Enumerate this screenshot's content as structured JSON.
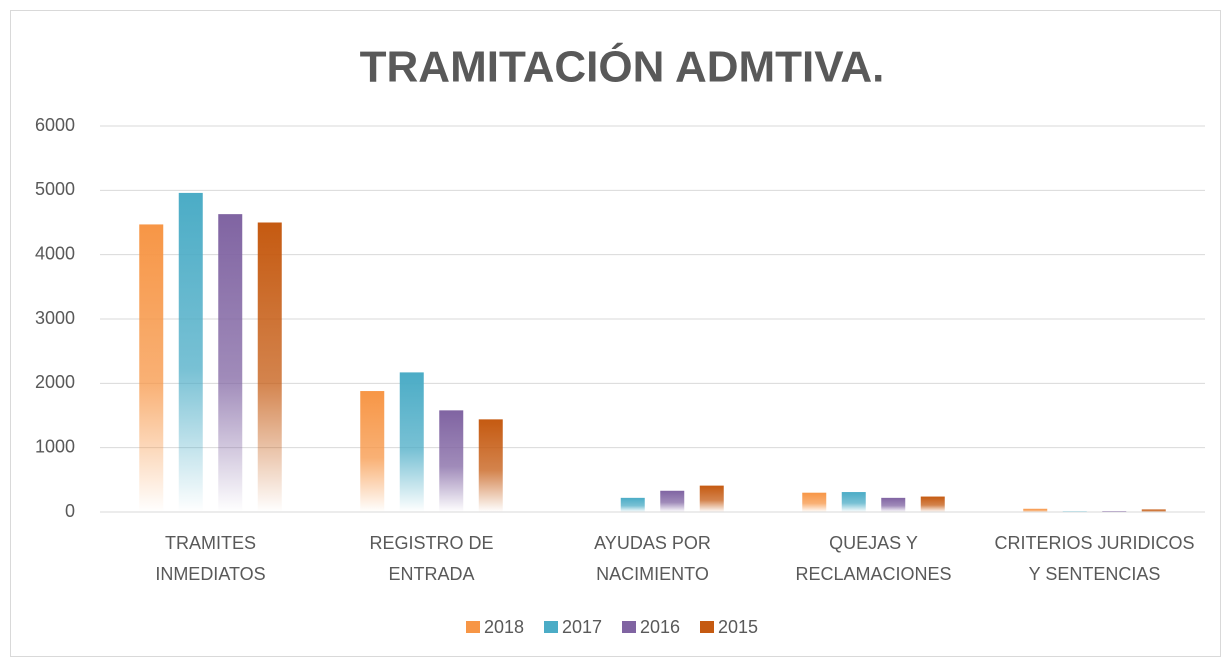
{
  "chart_data": {
    "type": "bar",
    "title": "TRAMITACIÓN ADMTIVA.",
    "categories": [
      [
        "TRAMITES",
        "INMEDIATOS"
      ],
      [
        "REGISTRO DE",
        "ENTRADA"
      ],
      [
        "AYUDAS POR",
        "NACIMIENTO"
      ],
      [
        "QUEJAS Y",
        "RECLAMACIONES"
      ],
      [
        "CRITERIOS JURIDICOS",
        "Y SENTENCIAS"
      ]
    ],
    "series": [
      {
        "name": "2018",
        "color": "#f79646",
        "values": [
          4470,
          1880,
          0,
          300,
          50
        ]
      },
      {
        "name": "2017",
        "color": "#4bacc6",
        "values": [
          4960,
          2170,
          220,
          310,
          5
        ]
      },
      {
        "name": "2016",
        "color": "#8064a2",
        "values": [
          4630,
          1580,
          330,
          220,
          10
        ]
      },
      {
        "name": "2015",
        "color": "#c55a11",
        "values": [
          4500,
          1440,
          410,
          240,
          40
        ]
      }
    ],
    "ylim": [
      0,
      6000
    ],
    "yticks": [
      0,
      1000,
      2000,
      3000,
      4000,
      5000,
      6000
    ],
    "grid": true,
    "legend": "bottom"
  }
}
